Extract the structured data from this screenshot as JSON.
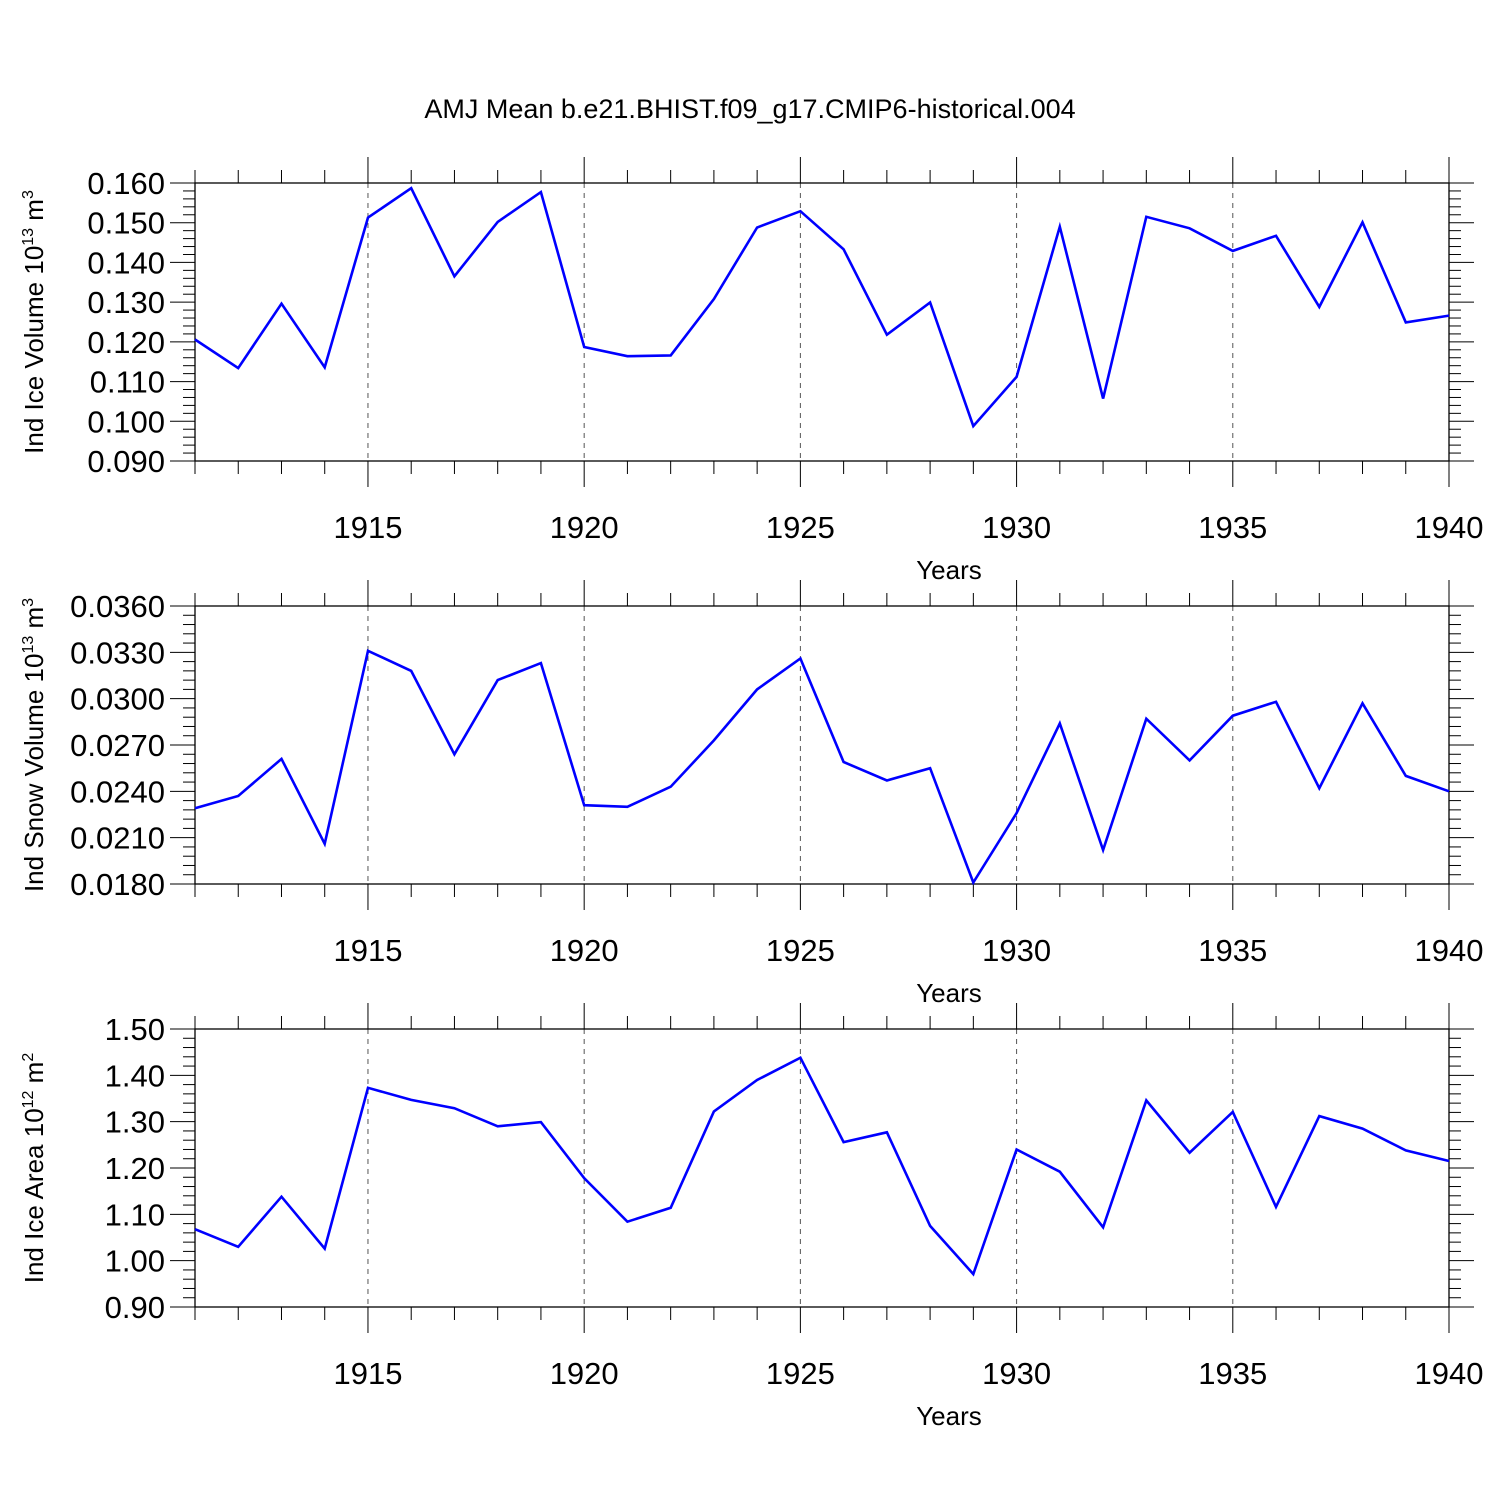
{
  "title": "AMJ Mean b.e21.BHIST.f09_g17.CMIP6-historical.004",
  "colors": {
    "line": "#0000ff",
    "axis": "#000000",
    "grid": "#555555"
  },
  "chart_data": [
    {
      "type": "line",
      "ylabel_base": "Ind Ice Volume 10",
      "ylabel_exp": "13",
      "ylabel_unit": " m",
      "ylabel_unit_exp": "3",
      "xlabel": "Years",
      "xlim": [
        1911,
        1940
      ],
      "ylim": [
        0.09,
        0.16
      ],
      "yticks": [
        0.09,
        0.1,
        0.11,
        0.12,
        0.13,
        0.14,
        0.15,
        0.16
      ],
      "ytick_labels": [
        "0.090",
        "0.100",
        "0.110",
        "0.120",
        "0.130",
        "0.140",
        "0.150",
        "0.160"
      ],
      "xticks": [
        1915,
        1920,
        1925,
        1930,
        1935,
        1940
      ],
      "xtick_labels": [
        "1915",
        "1920",
        "1925",
        "1930",
        "1935",
        "1940"
      ],
      "grid_x": [
        1915,
        1920,
        1925,
        1930,
        1935
      ],
      "series": [
        {
          "name": "Ind Ice Volume",
          "x": [
            1911,
            1912,
            1913,
            1914,
            1915,
            1916,
            1917,
            1918,
            1919,
            1920,
            1921,
            1922,
            1923,
            1924,
            1925,
            1926,
            1927,
            1928,
            1929,
            1930,
            1931,
            1932,
            1933,
            1934,
            1935,
            1936,
            1937,
            1938,
            1939,
            1940
          ],
          "values": [
            0.1206,
            0.1134,
            0.1296,
            0.1136,
            0.1513,
            0.1587,
            0.1365,
            0.1502,
            0.1577,
            0.1187,
            0.1164,
            0.1166,
            0.1308,
            0.1488,
            0.1529,
            0.1433,
            0.1218,
            0.1299,
            0.0988,
            0.1112,
            0.149,
            0.1057,
            0.1515,
            0.1486,
            0.1429,
            0.1467,
            0.1288,
            0.1501,
            0.1249,
            0.1266
          ]
        }
      ]
    },
    {
      "type": "line",
      "ylabel_base": "Ind Snow Volume 10",
      "ylabel_exp": "13",
      "ylabel_unit": " m",
      "ylabel_unit_exp": "3",
      "xlabel": "Years",
      "xlim": [
        1911,
        1940
      ],
      "ylim": [
        0.018,
        0.036
      ],
      "yticks": [
        0.018,
        0.021,
        0.024,
        0.027,
        0.03,
        0.033,
        0.036
      ],
      "ytick_labels": [
        "0.0180",
        "0.0210",
        "0.0240",
        "0.0270",
        "0.0300",
        "0.0330",
        "0.0360"
      ],
      "xticks": [
        1915,
        1920,
        1925,
        1930,
        1935,
        1940
      ],
      "xtick_labels": [
        "1915",
        "1920",
        "1925",
        "1930",
        "1935",
        "1940"
      ],
      "grid_x": [
        1915,
        1920,
        1925,
        1930,
        1935
      ],
      "series": [
        {
          "name": "Ind Snow Volume",
          "x": [
            1911,
            1912,
            1913,
            1914,
            1915,
            1916,
            1917,
            1918,
            1919,
            1920,
            1921,
            1922,
            1923,
            1924,
            1925,
            1926,
            1927,
            1928,
            1929,
            1930,
            1931,
            1932,
            1933,
            1934,
            1935,
            1936,
            1937,
            1938,
            1939,
            1940
          ],
          "values": [
            0.0229,
            0.0237,
            0.0261,
            0.0206,
            0.0331,
            0.0318,
            0.0264,
            0.0312,
            0.0323,
            0.0231,
            0.023,
            0.0243,
            0.0273,
            0.0306,
            0.0326,
            0.0259,
            0.0247,
            0.0255,
            0.0181,
            0.0226,
            0.0284,
            0.0202,
            0.0287,
            0.026,
            0.0289,
            0.0298,
            0.0242,
            0.0297,
            0.025,
            0.024
          ]
        }
      ]
    },
    {
      "type": "line",
      "ylabel_base": "Ind Ice Area 10",
      "ylabel_exp": "12",
      "ylabel_unit": " m",
      "ylabel_unit_exp": "2",
      "xlabel": "Years",
      "xlim": [
        1911,
        1940
      ],
      "ylim": [
        0.9,
        1.5
      ],
      "yticks": [
        0.9,
        1.0,
        1.1,
        1.2,
        1.3,
        1.4,
        1.5
      ],
      "ytick_labels": [
        "0.90",
        "1.00",
        "1.10",
        "1.20",
        "1.30",
        "1.40",
        "1.50"
      ],
      "xticks": [
        1915,
        1920,
        1925,
        1930,
        1935,
        1940
      ],
      "xtick_labels": [
        "1915",
        "1920",
        "1925",
        "1930",
        "1935",
        "1940"
      ],
      "grid_x": [
        1915,
        1920,
        1925,
        1930,
        1935
      ],
      "series": [
        {
          "name": "Ind Ice Area",
          "x": [
            1911,
            1912,
            1913,
            1914,
            1915,
            1916,
            1917,
            1918,
            1919,
            1920,
            1921,
            1922,
            1923,
            1924,
            1925,
            1926,
            1927,
            1928,
            1929,
            1930,
            1931,
            1932,
            1933,
            1934,
            1935,
            1936,
            1937,
            1938,
            1939,
            1940
          ],
          "values": [
            1.068,
            1.03,
            1.138,
            1.026,
            1.373,
            1.347,
            1.329,
            1.29,
            1.299,
            1.178,
            1.084,
            1.114,
            1.322,
            1.39,
            1.438,
            1.256,
            1.277,
            1.075,
            0.971,
            1.24,
            1.192,
            1.072,
            1.346,
            1.233,
            1.321,
            1.116,
            1.312,
            1.285,
            1.238,
            1.215
          ]
        }
      ]
    }
  ]
}
